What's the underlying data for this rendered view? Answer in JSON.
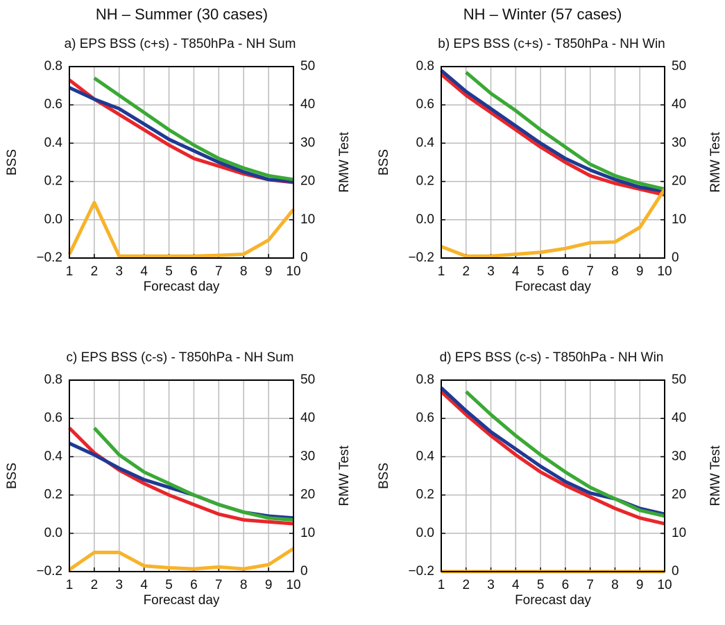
{
  "headings": [
    "NH – Summer (30 cases)",
    "NH – Winter (57 cases)"
  ],
  "chart_data": [
    {
      "type": "line",
      "title": "a) EPS BSS (c+s) - T850hPa - NH Sum",
      "xlabel": "Forecast day",
      "ylabel": "BSS",
      "y2label": "RMW Test",
      "x": [
        1,
        2,
        3,
        4,
        5,
        6,
        7,
        8,
        9,
        10
      ],
      "xlim": [
        1,
        10
      ],
      "xticks": [
        1,
        2,
        3,
        4,
        5,
        6,
        7,
        8,
        9,
        10
      ],
      "ylim": [
        -0.2,
        0.8
      ],
      "yticks": [
        {
          "value": -0.2,
          "label": "−0.2"
        },
        {
          "value": 0,
          "label": "0.0"
        },
        0.2,
        0.4,
        0.6,
        0.8
      ],
      "y2lim": [
        0,
        50
      ],
      "y2ticks": [
        0,
        10,
        20,
        30,
        40,
        50
      ],
      "grid": true,
      "series": [
        {
          "color": "#e8262a",
          "values": [
            0.73,
            0.63,
            0.55,
            0.47,
            0.39,
            0.32,
            0.28,
            0.24,
            0.21,
            0.195
          ]
        },
        {
          "color": "#1f3a93",
          "values": [
            0.69,
            0.63,
            0.58,
            0.5,
            0.42,
            0.36,
            0.3,
            0.25,
            0.21,
            0.2
          ]
        },
        {
          "color": "#3aa935",
          "values": [
            null,
            0.74,
            0.65,
            0.56,
            0.47,
            0.39,
            0.32,
            0.27,
            0.23,
            0.21
          ]
        },
        {
          "color": "#f7b32b",
          "axis": "y2",
          "values": [
            1,
            14.5,
            0.5,
            0.5,
            0.5,
            0.5,
            0.7,
            1,
            4.7,
            12.7
          ]
        }
      ]
    },
    {
      "type": "line",
      "title": "b) EPS BSS (c+s) - T850hPa - NH Win",
      "xlabel": "Forecast day",
      "ylabel": "BSS",
      "y2label": "RMW Test",
      "x": [
        1,
        2,
        3,
        4,
        5,
        6,
        7,
        8,
        9,
        10
      ],
      "xlim": [
        1,
        10
      ],
      "xticks": [
        1,
        2,
        3,
        4,
        5,
        6,
        7,
        8,
        9,
        10
      ],
      "ylim": [
        -0.2,
        0.8
      ],
      "yticks": [
        {
          "value": -0.2,
          "label": "−0.2"
        },
        {
          "value": 0,
          "label": "0.0"
        },
        0.2,
        0.4,
        0.6,
        0.8
      ],
      "y2lim": [
        0,
        50
      ],
      "y2ticks": [
        0,
        10,
        20,
        30,
        40,
        50
      ],
      "grid": true,
      "series": [
        {
          "color": "#e8262a",
          "values": [
            0.76,
            0.65,
            0.56,
            0.47,
            0.38,
            0.3,
            0.23,
            0.19,
            0.16,
            0.13
          ]
        },
        {
          "color": "#1f3a93",
          "values": [
            0.78,
            0.67,
            0.58,
            0.49,
            0.4,
            0.32,
            0.26,
            0.21,
            0.17,
            0.15
          ]
        },
        {
          "color": "#3aa935",
          "values": [
            null,
            0.77,
            0.66,
            0.57,
            0.47,
            0.38,
            0.29,
            0.23,
            0.19,
            0.16
          ]
        },
        {
          "color": "#f7b32b",
          "axis": "y2",
          "values": [
            3,
            0.5,
            0.5,
            1,
            1.5,
            2.5,
            4,
            4.2,
            8,
            18
          ]
        }
      ]
    },
    {
      "type": "line",
      "title": "c) EPS BSS (c-s) - T850hPa - NH Sum",
      "xlabel": "Forecast day",
      "ylabel": "BSS",
      "y2label": "RMW Test",
      "x": [
        1,
        2,
        3,
        4,
        5,
        6,
        7,
        8,
        9,
        10
      ],
      "xlim": [
        1,
        10
      ],
      "xticks": [
        1,
        2,
        3,
        4,
        5,
        6,
        7,
        8,
        9,
        10
      ],
      "ylim": [
        -0.2,
        0.8
      ],
      "yticks": [
        {
          "value": -0.2,
          "label": "−0.2"
        },
        {
          "value": 0,
          "label": "0.0"
        },
        0.2,
        0.4,
        0.6,
        0.8
      ],
      "y2lim": [
        0,
        50
      ],
      "y2ticks": [
        0,
        10,
        20,
        30,
        40,
        50
      ],
      "grid": true,
      "series": [
        {
          "color": "#e8262a",
          "values": [
            0.55,
            0.42,
            0.33,
            0.26,
            0.2,
            0.15,
            0.1,
            0.07,
            0.06,
            0.05
          ]
        },
        {
          "color": "#1f3a93",
          "values": [
            0.47,
            0.41,
            0.34,
            0.28,
            0.24,
            0.2,
            0.15,
            0.11,
            0.09,
            0.08
          ]
        },
        {
          "color": "#3aa935",
          "values": [
            null,
            0.55,
            0.41,
            0.32,
            0.26,
            0.2,
            0.15,
            0.11,
            0.08,
            0.07
          ]
        },
        {
          "color": "#f7b32b",
          "axis": "y2",
          "values": [
            0.5,
            5,
            5,
            1.5,
            1,
            0.7,
            1.2,
            0.7,
            1.8,
            6
          ]
        }
      ]
    },
    {
      "type": "line",
      "title": "d) EPS BSS (c-s) - T850hPa - NH Win",
      "xlabel": "Forecast day",
      "ylabel": "BSS",
      "y2label": "RMW Test",
      "x": [
        1,
        2,
        3,
        4,
        5,
        6,
        7,
        8,
        9,
        10
      ],
      "xlim": [
        1,
        10
      ],
      "xticks": [
        1,
        2,
        3,
        4,
        5,
        6,
        7,
        8,
        9,
        10
      ],
      "ylim": [
        -0.2,
        0.8
      ],
      "yticks": [
        {
          "value": -0.2,
          "label": "−0.2"
        },
        {
          "value": 0,
          "label": "0.0"
        },
        0.2,
        0.4,
        0.6,
        0.8
      ],
      "y2lim": [
        0,
        50
      ],
      "y2ticks": [
        0,
        10,
        20,
        30,
        40,
        50
      ],
      "grid": true,
      "series": [
        {
          "color": "#e8262a",
          "values": [
            0.74,
            0.62,
            0.51,
            0.41,
            0.32,
            0.25,
            0.19,
            0.13,
            0.08,
            0.05
          ]
        },
        {
          "color": "#1f3a93",
          "values": [
            0.76,
            0.64,
            0.53,
            0.44,
            0.35,
            0.27,
            0.21,
            0.18,
            0.13,
            0.1
          ]
        },
        {
          "color": "#3aa935",
          "values": [
            null,
            0.74,
            0.62,
            0.51,
            0.41,
            0.32,
            0.24,
            0.18,
            0.12,
            0.09
          ]
        },
        {
          "color": "#f7b32b",
          "axis": "y2",
          "values": [
            0,
            0,
            0,
            0,
            0,
            0,
            0,
            0,
            0,
            0
          ]
        }
      ]
    }
  ]
}
